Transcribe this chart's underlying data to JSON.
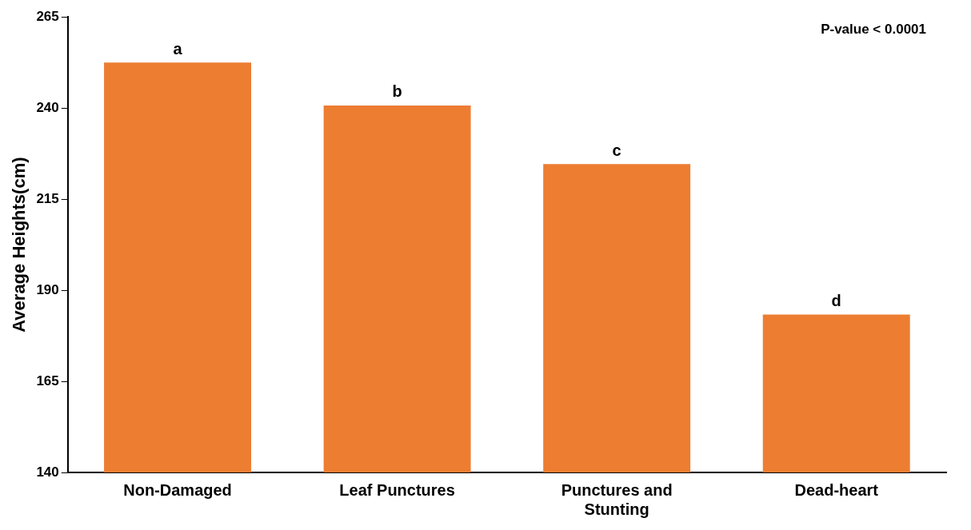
{
  "chart_data": {
    "type": "bar",
    "ylabel": "Average Heights(cm)",
    "categories": [
      "Non-Damaged",
      "Leaf Punctures",
      "Punctures and Stunting",
      "Dead-heart"
    ],
    "values": [
      252.5,
      240.7,
      224.6,
      183.3
    ],
    "color": "#ed7d31",
    "ylim": [
      140,
      265
    ],
    "yticks": [
      140,
      165,
      190,
      215,
      240,
      265
    ],
    "grid": false,
    "legend": false,
    "annotations": [
      {
        "text": "a",
        "x": "Non-Damaged",
        "y": 252.5
      },
      {
        "text": "b",
        "x": "Leaf Punctures",
        "y": 240.7
      },
      {
        "text": "c",
        "x": "Punctures and Stunting",
        "y": 224.6
      },
      {
        "text": "d",
        "x": "Dead-heart",
        "y": 183.3
      },
      "P-value < 0.0001"
    ]
  }
}
